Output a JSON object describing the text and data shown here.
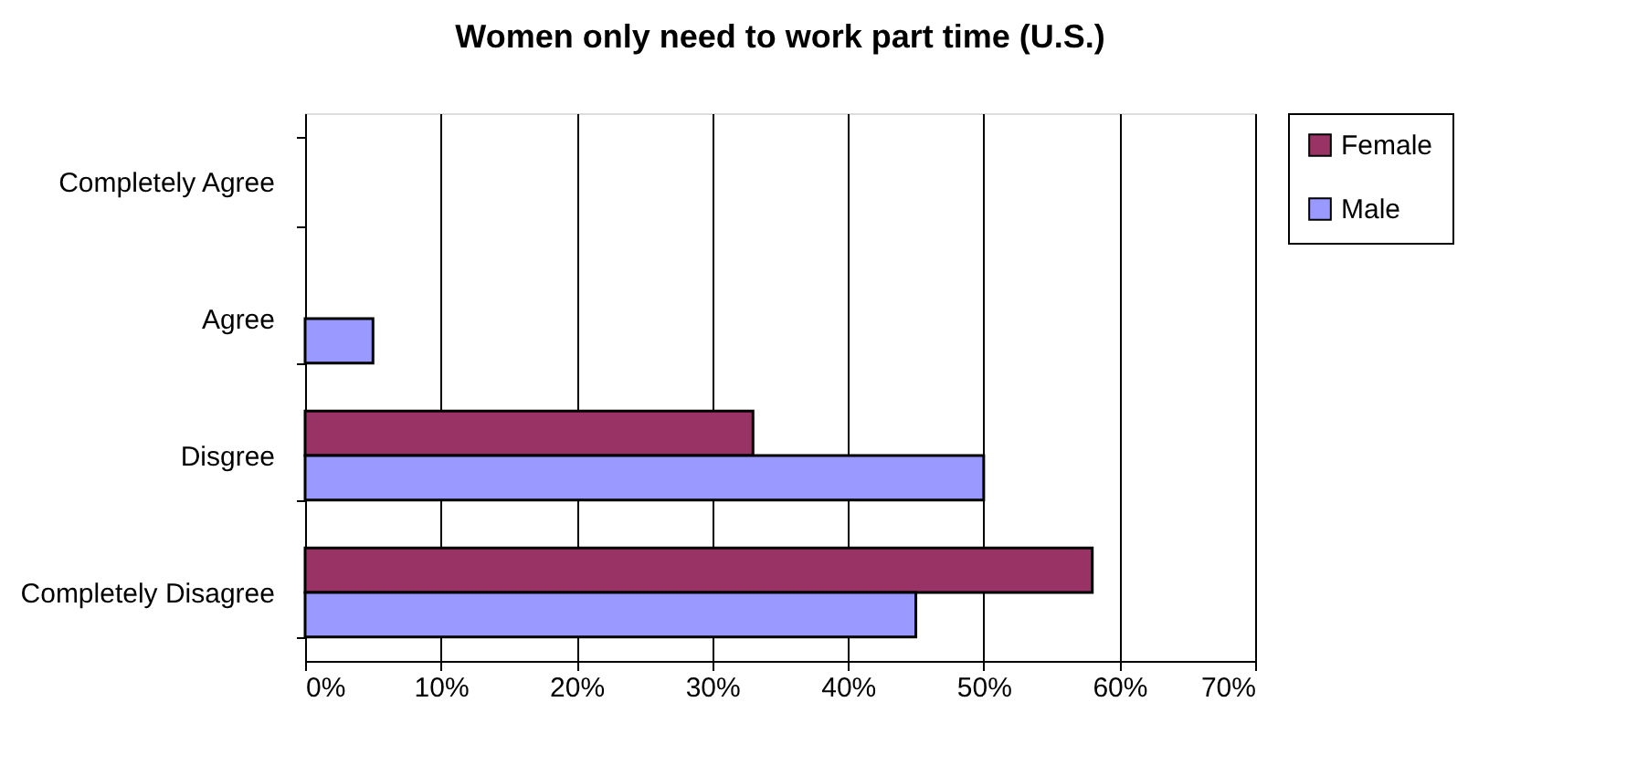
{
  "chart_data": {
    "type": "bar",
    "orientation": "horizontal",
    "title": "Women only need to work part time (U.S.)",
    "categories": [
      "Completely Agree",
      "Agree",
      "Disgree",
      "Completely Disagree"
    ],
    "series": [
      {
        "name": "Female",
        "color": "#993366",
        "values": [
          null,
          null,
          33,
          58
        ]
      },
      {
        "name": "Male",
        "color": "#9999ff",
        "values": [
          null,
          5,
          50,
          45
        ]
      }
    ],
    "xlim": [
      0,
      70
    ],
    "xticks": [
      {
        "value": 0,
        "label": "0%"
      },
      {
        "value": 10,
        "label": "10%"
      },
      {
        "value": 20,
        "label": "20%"
      },
      {
        "value": 30,
        "label": "30%"
      },
      {
        "value": 40,
        "label": "40%"
      },
      {
        "value": 50,
        "label": "50%"
      },
      {
        "value": 60,
        "label": "60%"
      },
      {
        "value": 70,
        "label": "70%"
      }
    ],
    "grid": "x",
    "legend": "right"
  }
}
